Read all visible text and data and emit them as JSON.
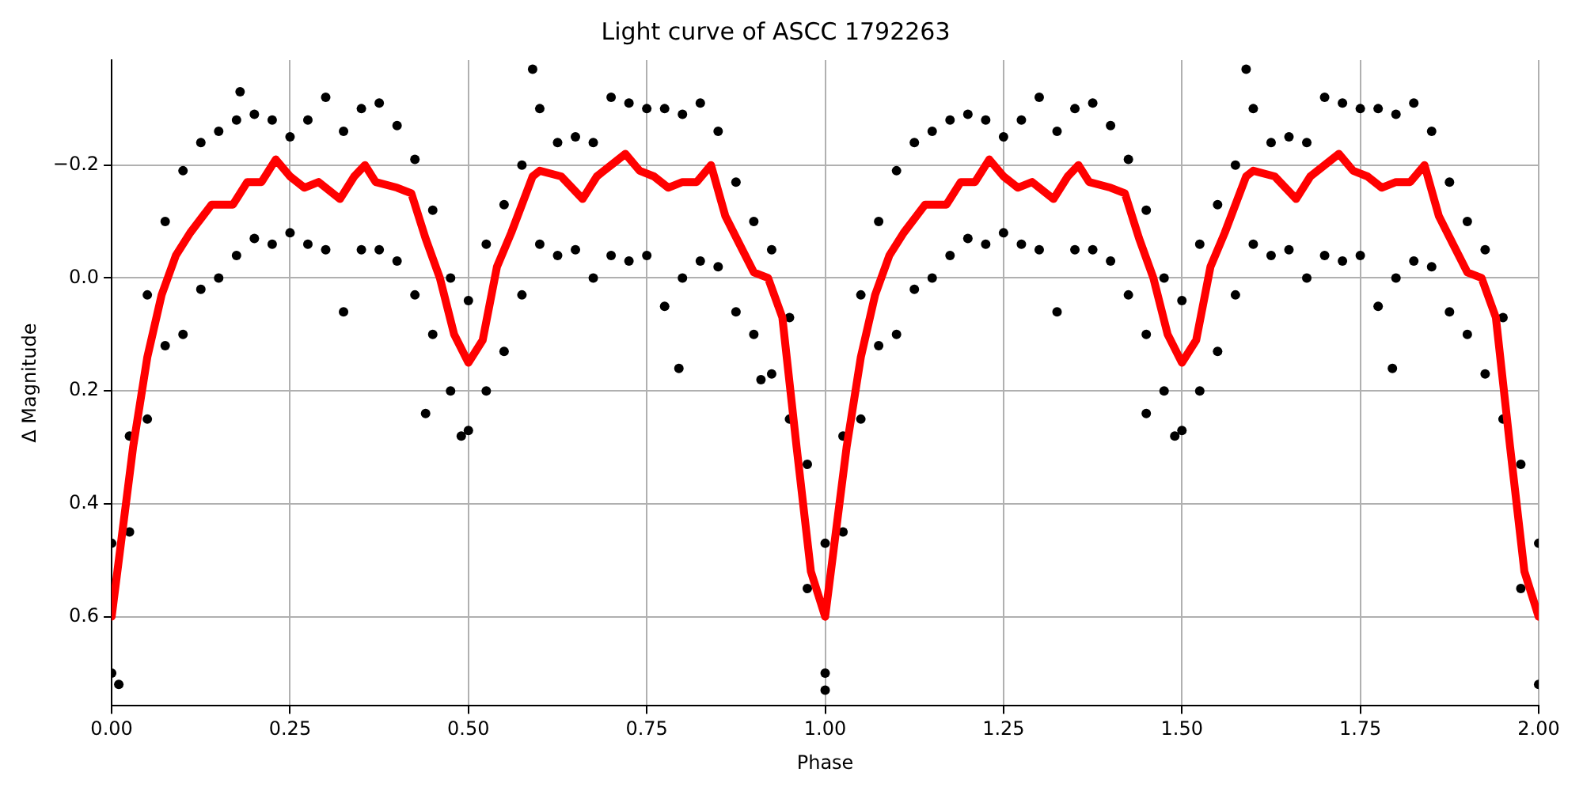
{
  "chart_data": {
    "type": "scatter",
    "title": "Light curve of ASCC 1792263",
    "xlabel": "Phase",
    "ylabel": "Δ Magnitude",
    "xlim": [
      0,
      2
    ],
    "xticks": [
      {
        "value": 0,
        "label": "0.00"
      },
      {
        "value": 0.25,
        "label": "0.25"
      },
      {
        "value": 0.5,
        "label": "0.50"
      },
      {
        "value": 0.75,
        "label": "0.75"
      },
      {
        "value": 1,
        "label": "1.00"
      },
      {
        "value": 1.25,
        "label": "1.25"
      },
      {
        "value": 1.5,
        "label": "1.50"
      },
      {
        "value": 1.75,
        "label": "1.75"
      },
      {
        "value": 2,
        "label": "2.00"
      }
    ],
    "ylim": [
      0.758,
      -0.386
    ],
    "yticks": [
      {
        "value": -0.2,
        "label": "−0.2"
      },
      {
        "value": 0,
        "label": "0.0"
      },
      0.2,
      0.4,
      0.6
    ],
    "grid": true,
    "legend": false,
    "series": [
      {
        "type": "scatter",
        "color": "#000000",
        "marker": "circle",
        "x": [
          0,
          0,
          0.025,
          0.025,
          0.05,
          0.05,
          0.075,
          0.075,
          0.1,
          0.1,
          0.125,
          0.125,
          0.15,
          0.15,
          0.175,
          0.175,
          0.2,
          0.2,
          0.225,
          0.225,
          0.25,
          0.25,
          0.275,
          0.275,
          0.3,
          0.3,
          0.325,
          0.325,
          0.35,
          0.35,
          0.375,
          0.375,
          0.4,
          0.4,
          0.425,
          0.425,
          0.45,
          0.45,
          0.475,
          0.475,
          0.5,
          0.5,
          0.525,
          0.525,
          0.55,
          0.55,
          0.575,
          0.575,
          0.6,
          0.6,
          0.625,
          0.625,
          0.65,
          0.65,
          0.675,
          0.675,
          0.7,
          0.7,
          0.725,
          0.725,
          0.75,
          0.75,
          0.775,
          0.775,
          0.8,
          0.8,
          0.825,
          0.825,
          0.85,
          0.85,
          0.875,
          0.875,
          0.9,
          0.9,
          0.925,
          0.925,
          0.95,
          0.95,
          0.975,
          0.975,
          1,
          1,
          1.025,
          1.025,
          1.05,
          1.05,
          1.075,
          1.075,
          1.1,
          1.1,
          1.125,
          1.125,
          1.15,
          1.15,
          1.175,
          1.175,
          1.2,
          1.2,
          1.225,
          1.225,
          1.25,
          1.25,
          1.275,
          1.275,
          1.3,
          1.3,
          1.325,
          1.325,
          1.35,
          1.35,
          1.375,
          1.375,
          1.4,
          1.4,
          1.425,
          1.425,
          1.45,
          1.45,
          1.475,
          1.475,
          1.5,
          1.5,
          1.525,
          1.525,
          1.55,
          1.55,
          1.575,
          1.575,
          1.6,
          1.6,
          1.625,
          1.625,
          1.65,
          1.65,
          1.675,
          1.675,
          1.7,
          1.7,
          1.725,
          1.725,
          1.75,
          1.75,
          1.775,
          1.775,
          1.8,
          1.8,
          1.825,
          1.825,
          1.85,
          1.85,
          1.875,
          1.875,
          1.9,
          1.9,
          1.925,
          1.925,
          1.95,
          1.95,
          1.975,
          1.975,
          2,
          2,
          0.18,
          0.59,
          0.44,
          0.49,
          0.795,
          0.91,
          0.01,
          1.59,
          1.795,
          1.45,
          1.49,
          1
        ],
        "values": [
          0.47,
          0.7,
          0.28,
          0.45,
          0.03,
          0.25,
          -0.1,
          0.12,
          -0.19,
          0.1,
          -0.24,
          0.02,
          -0.26,
          0,
          -0.28,
          -0.04,
          -0.29,
          -0.07,
          -0.28,
          -0.06,
          -0.25,
          -0.08,
          -0.28,
          -0.06,
          -0.32,
          -0.05,
          -0.26,
          0.06,
          -0.3,
          -0.05,
          -0.31,
          -0.05,
          -0.27,
          -0.03,
          -0.21,
          0.03,
          -0.12,
          0.1,
          0,
          0.2,
          0.04,
          0.27,
          -0.06,
          0.2,
          -0.13,
          0.13,
          -0.2,
          0.03,
          -0.3,
          -0.06,
          -0.24,
          -0.04,
          -0.25,
          -0.05,
          -0.24,
          0,
          -0.32,
          -0.04,
          -0.31,
          -0.03,
          -0.3,
          -0.04,
          -0.3,
          0.05,
          -0.29,
          0,
          -0.31,
          -0.03,
          -0.26,
          -0.02,
          -0.17,
          0.06,
          -0.1,
          0.1,
          -0.05,
          0.17,
          0.07,
          0.25,
          0.33,
          0.55,
          0.47,
          0.7,
          0.28,
          0.45,
          0.03,
          0.25,
          -0.1,
          0.12,
          -0.19,
          0.1,
          -0.24,
          0.02,
          -0.26,
          0,
          -0.28,
          -0.04,
          -0.29,
          -0.07,
          -0.28,
          -0.06,
          -0.25,
          -0.08,
          -0.28,
          -0.06,
          -0.32,
          -0.05,
          -0.26,
          0.06,
          -0.3,
          -0.05,
          -0.31,
          -0.05,
          -0.27,
          -0.03,
          -0.21,
          0.03,
          -0.12,
          0.1,
          0,
          0.2,
          0.04,
          0.27,
          -0.06,
          0.2,
          -0.13,
          0.13,
          -0.2,
          0.03,
          -0.3,
          -0.06,
          -0.24,
          -0.04,
          -0.25,
          -0.05,
          -0.24,
          0,
          -0.32,
          -0.04,
          -0.31,
          -0.03,
          -0.3,
          -0.04,
          -0.3,
          0.05,
          -0.29,
          0,
          -0.31,
          -0.03,
          -0.26,
          -0.02,
          -0.17,
          0.06,
          -0.1,
          0.1,
          -0.05,
          0.17,
          0.07,
          0.25,
          0.33,
          0.55,
          0.47,
          0.72,
          -0.33,
          -0.37,
          0.24,
          0.28,
          0.16,
          0.18,
          0.72,
          -0.37,
          0.16,
          0.24,
          0.28,
          0.73
        ]
      },
      {
        "type": "line",
        "color": "#ff0000",
        "marker": "none",
        "line_style": "solid",
        "x": [
          0,
          0.02,
          0.03,
          0.05,
          0.07,
          0.09,
          0.11,
          0.14,
          0.17,
          0.19,
          0.21,
          0.23,
          0.25,
          0.27,
          0.29,
          0.32,
          0.34,
          0.355,
          0.37,
          0.4,
          0.42,
          0.44,
          0.46,
          0.48,
          0.5,
          0.52,
          0.54,
          0.56,
          0.59,
          0.6,
          0.63,
          0.66,
          0.68,
          0.7,
          0.72,
          0.74,
          0.76,
          0.78,
          0.8,
          0.82,
          0.84,
          0.86,
          0.88,
          0.9,
          0.92,
          0.94,
          0.96,
          0.98,
          1,
          1.02,
          1.03,
          1.05,
          1.07,
          1.09,
          1.11,
          1.14,
          1.17,
          1.19,
          1.21,
          1.23,
          1.25,
          1.27,
          1.29,
          1.32,
          1.34,
          1.355,
          1.37,
          1.4,
          1.42,
          1.44,
          1.46,
          1.48,
          1.5,
          1.52,
          1.54,
          1.56,
          1.59,
          1.6,
          1.63,
          1.66,
          1.68,
          1.7,
          1.72,
          1.74,
          1.76,
          1.78,
          1.8,
          1.82,
          1.84,
          1.86,
          1.88,
          1.9,
          1.92,
          1.94,
          1.96,
          1.98,
          2
        ],
        "values": [
          0.6,
          0.4,
          0.3,
          0.14,
          0.03,
          -0.04,
          -0.08,
          -0.13,
          -0.13,
          -0.17,
          -0.17,
          -0.21,
          -0.18,
          -0.16,
          -0.17,
          -0.14,
          -0.18,
          -0.2,
          -0.17,
          -0.16,
          -0.15,
          -0.07,
          0,
          0.1,
          0.15,
          0.11,
          -0.02,
          -0.08,
          -0.18,
          -0.19,
          -0.18,
          -0.14,
          -0.18,
          -0.2,
          -0.22,
          -0.19,
          -0.18,
          -0.16,
          -0.17,
          -0.17,
          -0.2,
          -0.11,
          -0.06,
          -0.01,
          0,
          0.07,
          0.3,
          0.52,
          0.6,
          0.4,
          0.3,
          0.14,
          0.03,
          -0.04,
          -0.08,
          -0.13,
          -0.13,
          -0.17,
          -0.17,
          -0.21,
          -0.18,
          -0.16,
          -0.17,
          -0.14,
          -0.18,
          -0.2,
          -0.17,
          -0.16,
          -0.15,
          -0.07,
          0,
          0.1,
          0.15,
          0.11,
          -0.02,
          -0.08,
          -0.18,
          -0.19,
          -0.18,
          -0.14,
          -0.18,
          -0.2,
          -0.22,
          -0.19,
          -0.18,
          -0.16,
          -0.17,
          -0.17,
          -0.2,
          -0.11,
          -0.06,
          -0.01,
          0,
          0.07,
          0.3,
          0.52,
          0.6
        ]
      }
    ]
  }
}
